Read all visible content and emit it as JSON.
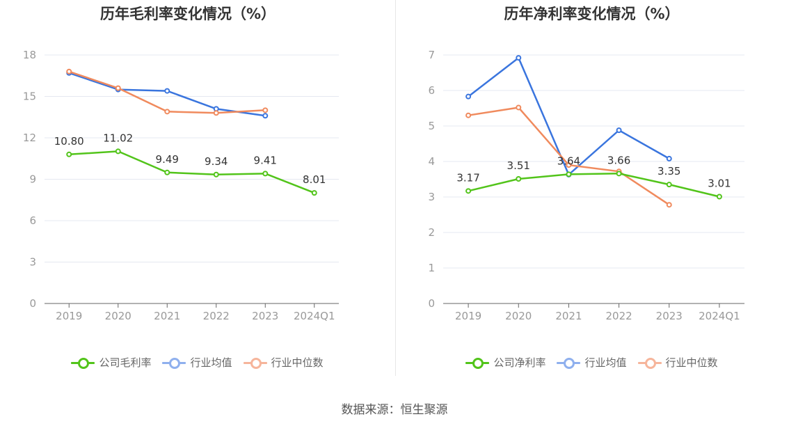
{
  "chart_data": [
    {
      "type": "line",
      "title": "历年毛利率变化情况（%）",
      "categories": [
        "2019",
        "2020",
        "2021",
        "2022",
        "2023",
        "2024Q1"
      ],
      "ylim": [
        0,
        18
      ],
      "yticks": [
        0,
        3,
        6,
        9,
        12,
        15,
        18
      ],
      "series": [
        {
          "name": "公司毛利率",
          "color": "#52c41a",
          "values": [
            10.8,
            11.02,
            9.49,
            9.34,
            9.41,
            8.01
          ],
          "labels": [
            "10.80",
            "11.02",
            "9.49",
            "9.34",
            "9.41",
            "8.01"
          ],
          "show_labels": true
        },
        {
          "name": "行业均值",
          "color": "#3a75de",
          "values": [
            16.7,
            15.5,
            15.4,
            14.1,
            13.6,
            null
          ],
          "show_labels": false
        },
        {
          "name": "行业中位数",
          "color": "#f08a5d",
          "values": [
            16.8,
            15.6,
            13.9,
            13.8,
            14.0,
            null
          ],
          "show_labels": false
        }
      ],
      "grid": true,
      "legend": "bottom-center"
    },
    {
      "type": "line",
      "title": "历年净利率变化情况（%）",
      "categories": [
        "2019",
        "2020",
        "2021",
        "2022",
        "2023",
        "2024Q1"
      ],
      "ylim": [
        0,
        7
      ],
      "yticks": [
        0,
        1,
        2,
        3,
        4,
        5,
        6,
        7
      ],
      "series": [
        {
          "name": "公司净利率",
          "color": "#52c41a",
          "values": [
            3.17,
            3.51,
            3.64,
            3.66,
            3.35,
            3.01
          ],
          "labels": [
            "3.17",
            "3.51",
            "3.64",
            "3.66",
            "3.35",
            "3.01"
          ],
          "show_labels": true
        },
        {
          "name": "行业均值",
          "color": "#3a75de",
          "values": [
            5.83,
            6.92,
            3.63,
            4.88,
            4.08,
            null
          ],
          "show_labels": false
        },
        {
          "name": "行业中位数",
          "color": "#f08a5d",
          "values": [
            5.3,
            5.52,
            3.9,
            3.72,
            2.78,
            null
          ],
          "show_labels": false
        }
      ],
      "grid": true,
      "legend": "bottom-center"
    }
  ],
  "source": "数据来源：恒生聚源",
  "legend_colors_light": {
    "公司": "#52c41a",
    "行业均值": "#8fb0ee",
    "行业中位数": "#f6b59b"
  }
}
